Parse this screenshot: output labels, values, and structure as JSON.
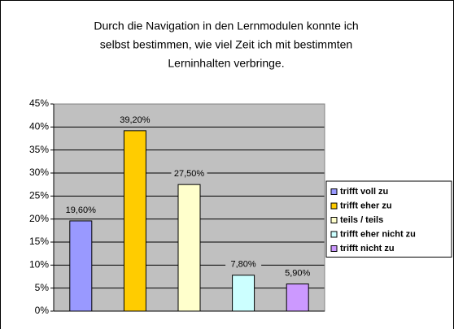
{
  "chart_data": {
    "type": "bar",
    "title": [
      "Durch die Navigation in den Lernmodulen konnte ich",
      "selbst bestimmen, wie viel Zeit ich mit bestimmten",
      "Lerninhalten verbringe."
    ],
    "series": [
      {
        "name": "trifft voll zu",
        "color": "#9999ff",
        "values": [
          19.6
        ],
        "value_labels": [
          "19,60%"
        ]
      },
      {
        "name": "trifft eher zu",
        "color": "#ffcc00",
        "values": [
          39.2
        ],
        "value_labels": [
          "39,20%"
        ]
      },
      {
        "name": "teils / teils",
        "color": "#ffffcc",
        "values": [
          27.5
        ],
        "value_labels": [
          "27,50%"
        ]
      },
      {
        "name": "trifft eher nicht zu",
        "color": "#ccffff",
        "values": [
          7.8
        ],
        "value_labels": [
          "7,80%"
        ]
      },
      {
        "name": "trifft nicht zu",
        "color": "#cc99ff",
        "values": [
          5.9
        ],
        "value_labels": [
          "5,90%"
        ]
      }
    ],
    "ylim": [
      0,
      45
    ],
    "yticks": [
      {
        "value": 0,
        "label": "0%"
      },
      {
        "value": 5,
        "label": "5%"
      },
      {
        "value": 10,
        "label": "10%"
      },
      {
        "value": 15,
        "label": "15%"
      },
      {
        "value": 20,
        "label": "20%"
      },
      {
        "value": 25,
        "label": "25%"
      },
      {
        "value": 30,
        "label": "30%"
      },
      {
        "value": 35,
        "label": "35%"
      },
      {
        "value": 40,
        "label": "40%"
      },
      {
        "value": 45,
        "label": "45%"
      }
    ],
    "grid": true,
    "legend": "right"
  }
}
